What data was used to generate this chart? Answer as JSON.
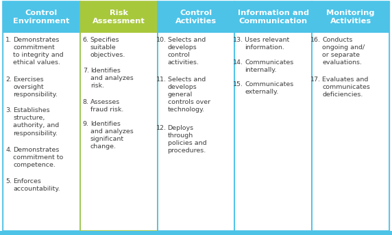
{
  "columns": [
    {
      "header": "Control\nEnvironment",
      "header_color": "#4DC3E8",
      "border_color": "#4DC3E8",
      "items": [
        {
          "num": "1.",
          "text": "Demonstrates\ncommitment\nto integrity and\nethical values."
        },
        {
          "num": "2.",
          "text": "Exercises\noversight\nresponsibility."
        },
        {
          "num": "3.",
          "text": "Establishes\nstructure,\nauthority, and\nresponsibility."
        },
        {
          "num": "4.",
          "text": "Demonstrates\ncommitment to\ncompetence."
        },
        {
          "num": "5.",
          "text": "Enforces\naccountability."
        }
      ]
    },
    {
      "header": "Risk\nAssessment",
      "header_color": "#A8C83C",
      "border_color": "#A8C83C",
      "items": [
        {
          "num": "6.",
          "text": "Specifies\nsuitable\nobjectives."
        },
        {
          "num": "7.",
          "text": "Identifies\nand analyzes\nrisk."
        },
        {
          "num": "8.",
          "text": "Assesses\nfraud risk."
        },
        {
          "num": "9.",
          "text": "Identifies\nand analyzes\nsignificant\nchange."
        }
      ]
    },
    {
      "header": "Control\nActivities",
      "header_color": "#4DC3E8",
      "border_color": "#4DC3E8",
      "items": [
        {
          "num": "10.",
          "text": "Selects and\ndevelops\ncontrol\nactivities."
        },
        {
          "num": "11.",
          "text": "Selects and\ndevelops\ngeneral\ncontrols over\ntechnology."
        },
        {
          "num": "12.",
          "text": "Deploys\nthrough\npolicies and\nprocedures."
        }
      ]
    },
    {
      "header": "Information and\nCommunication",
      "header_color": "#4DC3E8",
      "border_color": "#4DC3E8",
      "items": [
        {
          "num": "13.",
          "text": "Uses relevant\ninformation."
        },
        {
          "num": "14.",
          "text": "Communicates\ninternally."
        },
        {
          "num": "15.",
          "text": "Communicates\nexternally."
        }
      ]
    },
    {
      "header": "Monitoring\nActivities",
      "header_color": "#4DC3E8",
      "border_color": "#4DC3E8",
      "items": [
        {
          "num": "16.",
          "text": "Conducts\nongoing and/\nor separate\nevaluations."
        },
        {
          "num": "17.",
          "text": "Evaluates and\ncommunicates\ndeficiencies."
        }
      ]
    }
  ],
  "bg_color": "#FFFFFF",
  "outer_border_color": "#BBBBBB",
  "text_color": "#3D3D3D",
  "header_text_color": "#FFFFFF",
  "body_font_size": 6.8,
  "header_font_size": 8.2,
  "bottom_bar_color": "#4DC3E8",
  "bottom_bar_height": 6
}
